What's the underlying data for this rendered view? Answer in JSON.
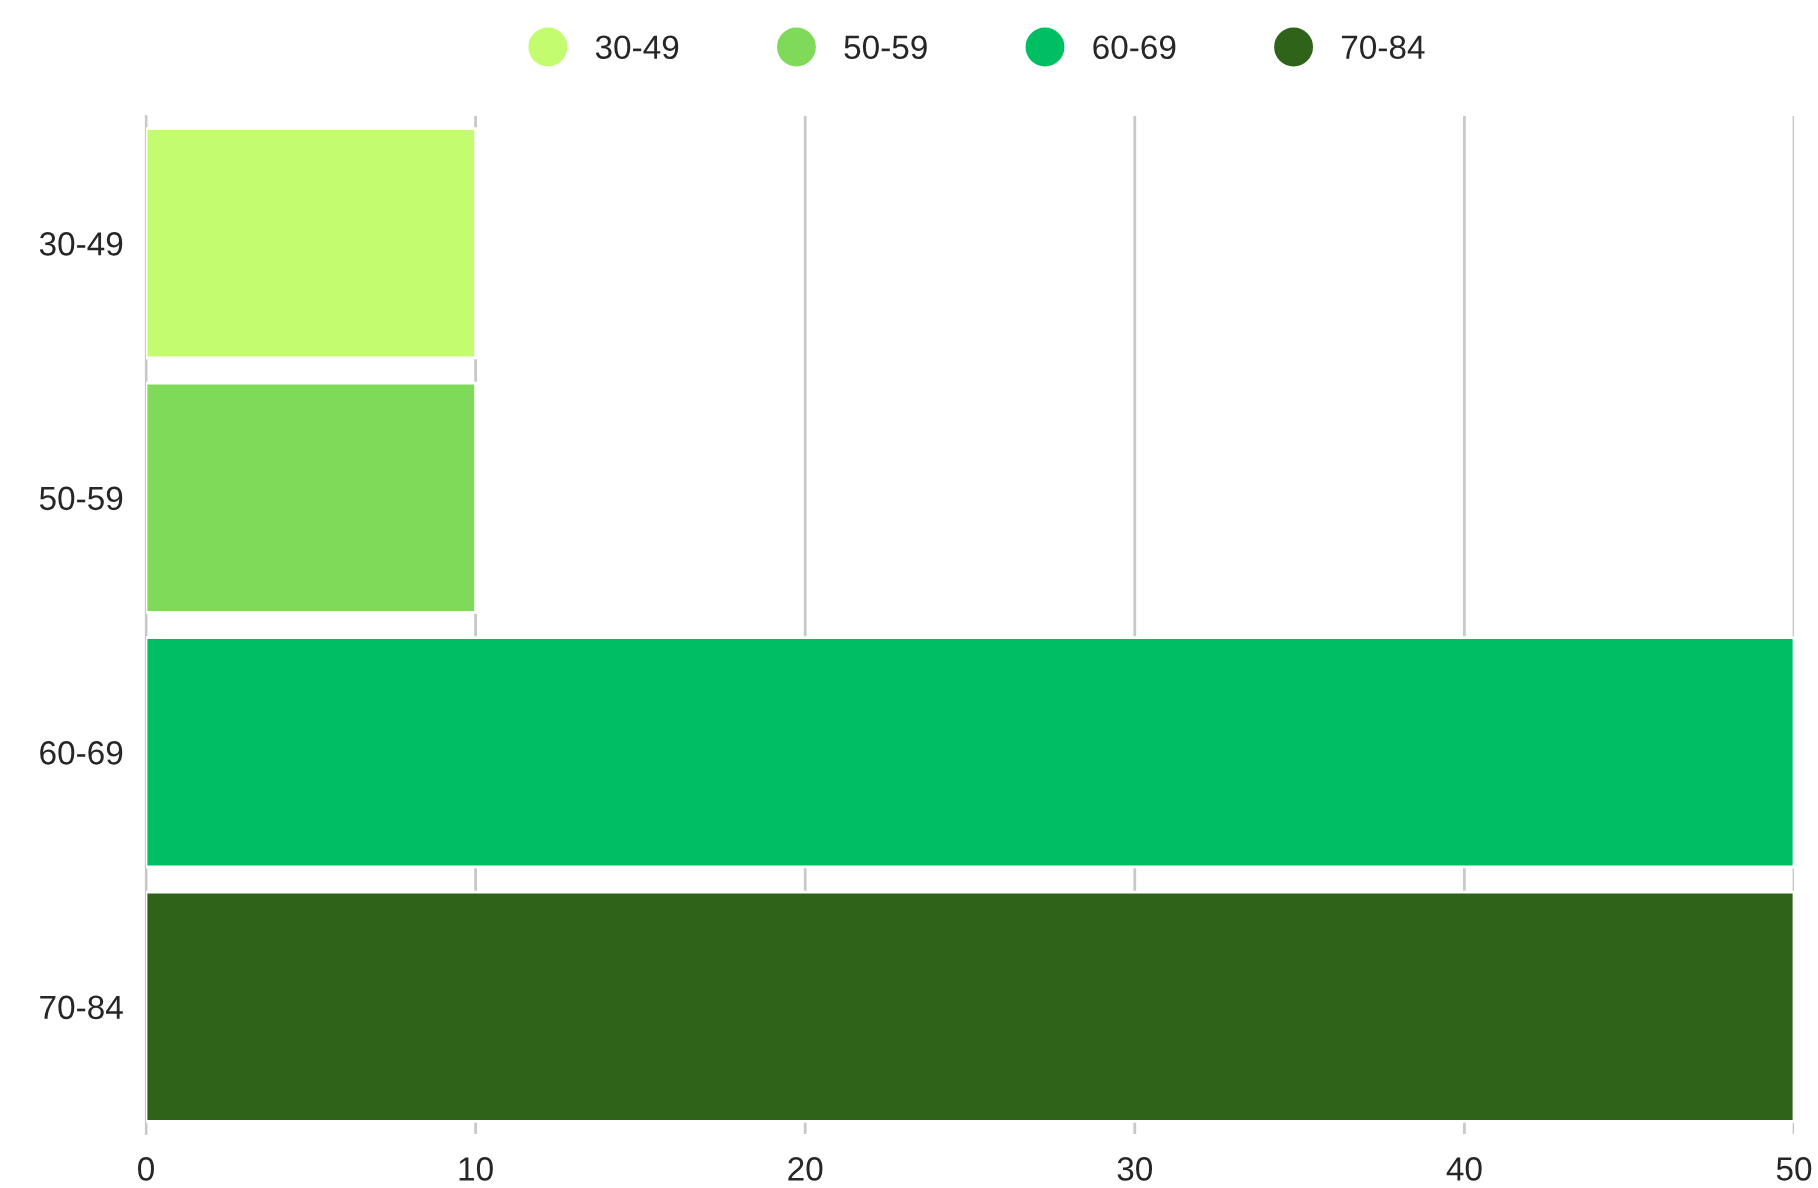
{
  "chart_data": {
    "type": "bar",
    "orientation": "horizontal",
    "categories": [
      "30-49",
      "50-59",
      "60-69",
      "70-84"
    ],
    "series": [
      {
        "name": "30-49",
        "color": "#c3fd6f",
        "values": [
          10,
          null,
          null,
          null
        ]
      },
      {
        "name": "50-59",
        "color": "#7fda5a",
        "values": [
          null,
          10,
          null,
          null
        ]
      },
      {
        "name": "60-69",
        "color": "#00bf63",
        "values": [
          null,
          null,
          50,
          null
        ]
      },
      {
        "name": "70-84",
        "color": "#2f631a",
        "values": [
          null,
          null,
          null,
          50
        ]
      }
    ],
    "xlim": [
      0,
      50
    ],
    "xticks": [
      0,
      10,
      20,
      30,
      40,
      50
    ],
    "grid": "x",
    "legend": "top"
  }
}
